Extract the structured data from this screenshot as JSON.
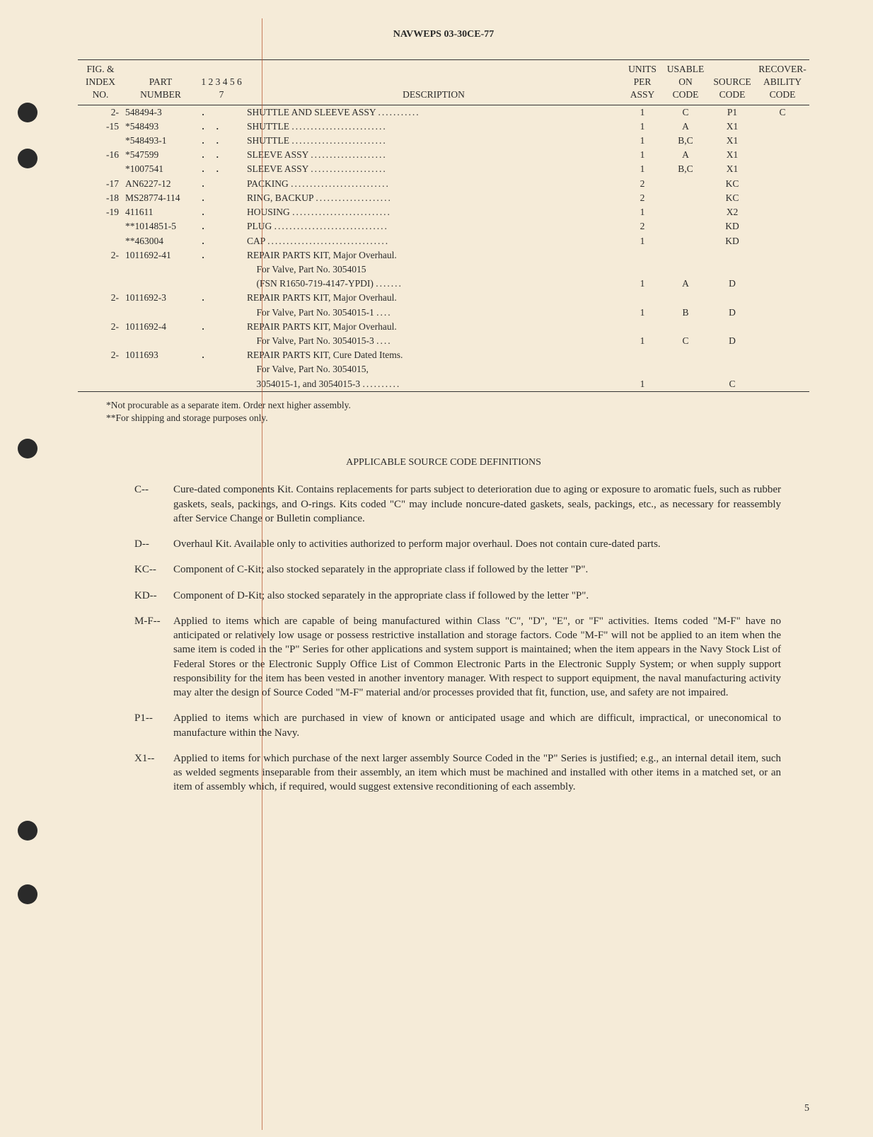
{
  "doc_title": "NAVWEPS 03-30CE-77",
  "page_number": "5",
  "table": {
    "columns": {
      "c1": "FIG. &\nINDEX\nNO.",
      "c2": "PART\nNUMBER",
      "c3": "1 2 3 4 5 6 7",
      "c4": "DESCRIPTION",
      "c5": "UNITS\nPER\nASSY",
      "c6": "USABLE\nON\nCODE",
      "c7": "SOURCE\nCODE",
      "c8": "RECOVER-\nABILITY\nCODE"
    },
    "rows": [
      {
        "idx": "2-",
        "part": "548494-3",
        "indent": ".",
        "desc": "SHUTTLE AND SLEEVE ASSY",
        "dots": "...........",
        "units": "1",
        "usable": "C",
        "source": "P1",
        "recover": "C"
      },
      {
        "idx": "-15",
        "part": "*548493",
        "indent": ". .",
        "desc": "SHUTTLE",
        "dots": ".........................",
        "units": "1",
        "usable": "A",
        "source": "X1",
        "recover": ""
      },
      {
        "idx": "",
        "part": "*548493-1",
        "indent": ". .",
        "desc": "SHUTTLE",
        "dots": ".........................",
        "units": "1",
        "usable": "B,C",
        "source": "X1",
        "recover": ""
      },
      {
        "idx": "-16",
        "part": "*547599",
        "indent": ". .",
        "desc": "SLEEVE ASSY",
        "dots": "....................",
        "units": "1",
        "usable": "A",
        "source": "X1",
        "recover": ""
      },
      {
        "idx": "",
        "part": "*1007541",
        "indent": ". .",
        "desc": "SLEEVE ASSY",
        "dots": "....................",
        "units": "1",
        "usable": "B,C",
        "source": "X1",
        "recover": ""
      },
      {
        "idx": "-17",
        "part": "AN6227-12",
        "indent": ".",
        "desc": "PACKING",
        "dots": "..........................",
        "units": "2",
        "usable": "",
        "source": "KC",
        "recover": ""
      },
      {
        "idx": "-18",
        "part": "MS28774-114",
        "indent": ".",
        "desc": "RING, BACKUP",
        "dots": "....................",
        "units": "2",
        "usable": "",
        "source": "KC",
        "recover": ""
      },
      {
        "idx": "-19",
        "part": "411611",
        "indent": ".",
        "desc": "HOUSING",
        "dots": "..........................",
        "units": "1",
        "usable": "",
        "source": "X2",
        "recover": ""
      },
      {
        "idx": "",
        "part": "**1014851-5",
        "indent": ".",
        "desc": "PLUG",
        "dots": "..............................",
        "units": "2",
        "usable": "",
        "source": "KD",
        "recover": ""
      },
      {
        "idx": "",
        "part": "**463004",
        "indent": ".",
        "desc": "CAP",
        "dots": "................................",
        "units": "1",
        "usable": "",
        "source": "KD",
        "recover": ""
      },
      {
        "idx": "2-",
        "part": "1011692-41",
        "indent": ".",
        "desc": "REPAIR PARTS KIT, Major Overhaul.\n   For Valve, Part No. 3054015\n   (FSN R1650-719-4147-YPDI)",
        "dots": ".......",
        "units": "1",
        "usable": "A",
        "source": "D",
        "recover": ""
      },
      {
        "idx": "2-",
        "part": "1011692-3",
        "indent": ".",
        "desc": "REPAIR PARTS KIT, Major Overhaul.\n   For Valve, Part No. 3054015-1",
        "dots": "....",
        "units": "1",
        "usable": "B",
        "source": "D",
        "recover": ""
      },
      {
        "idx": "2-",
        "part": "1011692-4",
        "indent": ".",
        "desc": "REPAIR PARTS KIT, Major Overhaul.\n   For Valve, Part No. 3054015-3",
        "dots": "....",
        "units": "1",
        "usable": "C",
        "source": "D",
        "recover": ""
      },
      {
        "idx": "2-",
        "part": "1011693",
        "indent": ".",
        "desc": "REPAIR PARTS KIT, Cure Dated Items.\n   For Valve, Part No. 3054015,\n   3054015-1, and 3054015-3",
        "dots": "..........",
        "units": "1",
        "usable": "",
        "source": "C",
        "recover": ""
      }
    ]
  },
  "footnotes": {
    "f1": "*Not procurable as a separate item. Order next higher assembly.",
    "f2": "**For shipping and storage purposes only."
  },
  "defs_title": "APPLICABLE SOURCE CODE DEFINITIONS",
  "definitions": [
    {
      "code": "C--",
      "text": "Cure-dated components Kit. Contains replacements for parts subject to deterioration due to aging or exposure to aromatic fuels, such as rubber gaskets, seals, packings, and O-rings. Kits coded \"C\" may include noncure-dated gaskets, seals, packings, etc., as necessary for reassembly after Service Change or Bulletin compliance."
    },
    {
      "code": "D--",
      "text": "Overhaul Kit. Available only to activities authorized to perform major overhaul. Does not contain cure-dated parts."
    },
    {
      "code": "KC--",
      "text": "Component of C-Kit; also stocked separately in the appropriate class if followed by the letter \"P\"."
    },
    {
      "code": "KD--",
      "text": "Component of D-Kit; also stocked separately in the appropriate class if followed by the letter \"P\"."
    },
    {
      "code": "M-F--",
      "text": "Applied to items which are capable of being manufactured within Class \"C\", \"D\", \"E\", or \"F\" activities. Items coded \"M-F\" have no anticipated or relatively low usage or possess restrictive installation and storage factors. Code \"M-F\" will not be applied to an item when the same item is coded in the \"P\" Series for other applications and system support is maintained; when the item appears in the Navy Stock List of Federal Stores or the Electronic Supply Office List of Common Electronic Parts in the Electronic Supply System; or when supply support responsibility for the item has been vested in another inventory manager. With respect to support equipment, the naval manufacturing activity may alter the design of Source Coded \"M-F\" material and/or processes provided that fit, function, use, and safety are not impaired."
    },
    {
      "code": "P1--",
      "text": "Applied to items which are purchased in view of known or anticipated usage and which are difficult, impractical, or uneconomical to manufacture within the Navy."
    },
    {
      "code": "X1--",
      "text": "Applied to items for which purchase of the next larger assembly Source Coded in the \"P\" Series is justified; e.g., an internal detail item, such as welded segments inseparable from their assembly, an item which must be machined and installed with other items in a matched set, or an item of assembly which, if required, would suggest extensive reconditioning of each assembly."
    }
  ]
}
